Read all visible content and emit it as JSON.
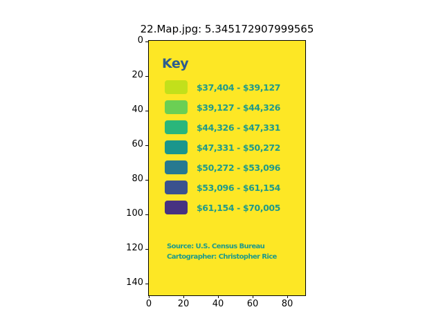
{
  "figure": {
    "title": "22.Map.jpg: 5.345172907999565"
  },
  "axes": {
    "x_ticks": [
      "0",
      "20",
      "40",
      "60",
      "80"
    ],
    "y_ticks": [
      "0",
      "20",
      "40",
      "60",
      "80",
      "100",
      "120",
      "140"
    ]
  },
  "legend": {
    "title": "Key",
    "items": [
      {
        "label": "$37,404 - $39,127",
        "color": "#c2df23"
      },
      {
        "label": "$39,127 - $44,326",
        "color": "#6ece58"
      },
      {
        "label": "$44,326 - $47,331",
        "color": "#2fb47c"
      },
      {
        "label": "$47,331 - $50,272",
        "color": "#1f958b"
      },
      {
        "label": "$50,272 - $53,096",
        "color": "#2a788e"
      },
      {
        "label": "$53,096 - $61,154",
        "color": "#3b528b"
      },
      {
        "label": "$61,154 - $70,005",
        "color": "#46327e"
      }
    ],
    "source": "Source: U.S. Census Bureau",
    "cartographer": "Cartographer: Christopher Rice"
  }
}
